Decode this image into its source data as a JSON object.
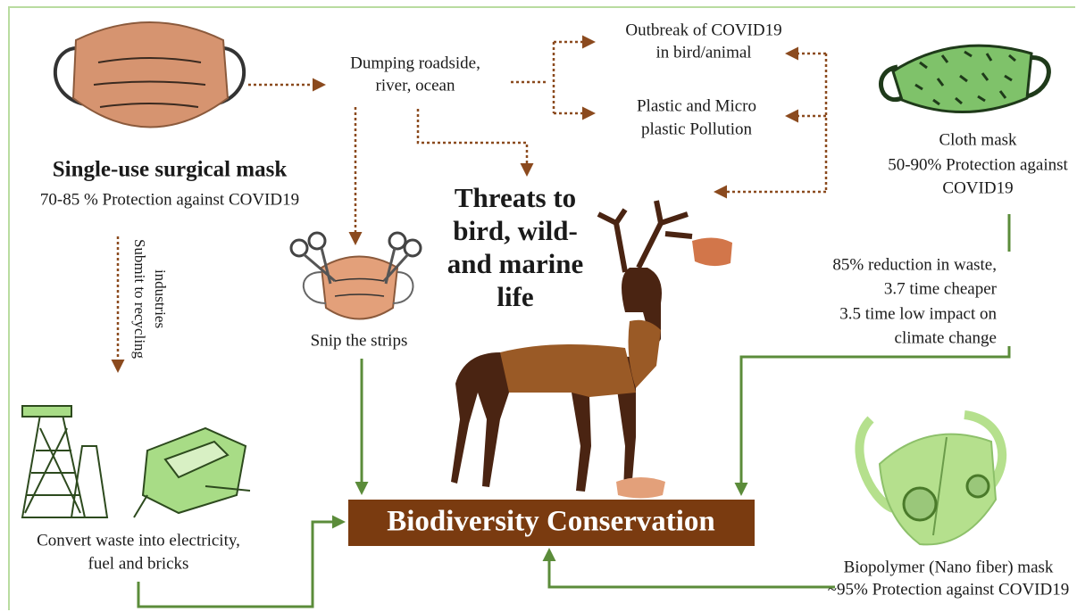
{
  "surgical_mask": {
    "title": "Single-use surgical mask",
    "protection": "70-85 % Protection against COVID19"
  },
  "dumping": [
    "Dumping roadside,",
    "river, ocean"
  ],
  "outbreak": [
    "Outbreak of COVID19",
    "in bird/animal"
  ],
  "pollution": [
    "Plastic and Micro",
    "plastic Pollution"
  ],
  "threats": [
    "Threats to",
    "bird, wild-",
    "and marine",
    "life"
  ],
  "cloth_mask": [
    "Cloth mask",
    "50-90% Protection against",
    "COVID19"
  ],
  "recycling": [
    "Submit to recycling",
    "industries"
  ],
  "snip": "Snip the strips",
  "cloth_benefits": [
    "85% reduction in waste,",
    "3.7 time cheaper",
    "3.5 time low impact on",
    "climate change"
  ],
  "convert": [
    "Convert waste into electricity,",
    "fuel and bricks"
  ],
  "center": "Biodiversity Conservation",
  "biopolymer": [
    "Biopolymer (Nano fiber) mask",
    "~95% Protection against COVID19"
  ]
}
